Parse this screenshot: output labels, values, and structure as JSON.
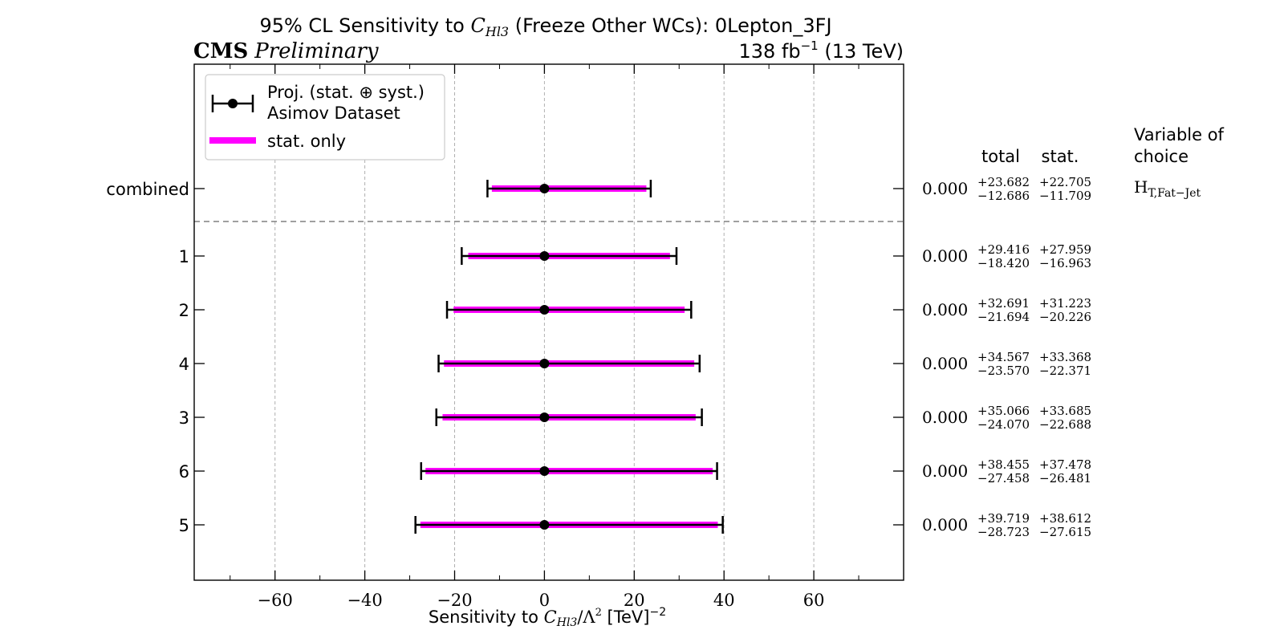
{
  "header": {
    "title_prefix": "95% CL Sensitivity to ",
    "title_wc": "C",
    "title_wc_sub": "Hl3",
    "title_suffix": " (Freeze Other WCs): 0Lepton_3FJ",
    "cms": "CMS",
    "preliminary": "Preliminary",
    "lumi_prefix": "138 fb",
    "lumi_exp": "−1",
    "lumi_suffix": " (13 TeV)"
  },
  "legend": {
    "proj_line1": "Proj. (stat. ⊕ syst.)",
    "proj_line2": "Asimov Dataset",
    "stat_only": "stat. only"
  },
  "columns": {
    "total": "total",
    "stat": "stat.",
    "variable_line1": "Variable of",
    "variable_line2": "choice",
    "variable_value": "H",
    "variable_value_sub": "T,Fat−Jet"
  },
  "colors": {
    "stat_band": "#ff00ff",
    "marker": "#000000",
    "grid": "#b0b0b0",
    "separator": "#808080"
  },
  "chart_data": {
    "type": "forest",
    "title": "95% CL Sensitivity to C_Hl3 (Freeze Other WCs): 0Lepton_3FJ",
    "xlabel": "Sensitivity to C_Hl3/Λ^2 [TeV]^-2",
    "xlim": [
      -78,
      80
    ],
    "xticks": [
      -60,
      -40,
      -20,
      0,
      20,
      40,
      60
    ],
    "xtick_labels": [
      "−60",
      "−40",
      "−20",
      "0",
      "20",
      "40",
      "60"
    ],
    "grid": true,
    "legend_position": "top-left",
    "rows": [
      {
        "label": "combined",
        "central": 0.0,
        "central_text": "0.000",
        "total_up": 23.682,
        "total_down": 12.686,
        "total_up_text": "+23.682",
        "total_down_text": "−12.686",
        "stat_up": 22.705,
        "stat_down": 11.709,
        "stat_up_text": "+22.705",
        "stat_down_text": "−11.709"
      },
      {
        "label": "1",
        "central": 0.0,
        "central_text": "0.000",
        "total_up": 29.416,
        "total_down": 18.42,
        "total_up_text": "+29.416",
        "total_down_text": "−18.420",
        "stat_up": 27.959,
        "stat_down": 16.963,
        "stat_up_text": "+27.959",
        "stat_down_text": "−16.963"
      },
      {
        "label": "2",
        "central": 0.0,
        "central_text": "0.000",
        "total_up": 32.691,
        "total_down": 21.694,
        "total_up_text": "+32.691",
        "total_down_text": "−21.694",
        "stat_up": 31.223,
        "stat_down": 20.226,
        "stat_up_text": "+31.223",
        "stat_down_text": "−20.226"
      },
      {
        "label": "4",
        "central": 0.0,
        "central_text": "0.000",
        "total_up": 34.567,
        "total_down": 23.57,
        "total_up_text": "+34.567",
        "total_down_text": "−23.570",
        "stat_up": 33.368,
        "stat_down": 22.371,
        "stat_up_text": "+33.368",
        "stat_down_text": "−22.371"
      },
      {
        "label": "3",
        "central": 0.0,
        "central_text": "0.000",
        "total_up": 35.066,
        "total_down": 24.07,
        "total_up_text": "+35.066",
        "total_down_text": "−24.070",
        "stat_up": 33.685,
        "stat_down": 22.688,
        "stat_up_text": "+33.685",
        "stat_down_text": "−22.688"
      },
      {
        "label": "6",
        "central": 0.0,
        "central_text": "0.000",
        "total_up": 38.455,
        "total_down": 27.458,
        "total_up_text": "+38.455",
        "total_down_text": "−27.458",
        "stat_up": 37.478,
        "stat_down": 26.481,
        "stat_up_text": "+37.478",
        "stat_down_text": "−26.481"
      },
      {
        "label": "5",
        "central": 0.0,
        "central_text": "0.000",
        "total_up": 39.719,
        "total_down": 28.723,
        "total_up_text": "+39.719",
        "total_down_text": "−28.723",
        "stat_up": 38.612,
        "stat_down": 27.615,
        "stat_up_text": "+38.612",
        "stat_down_text": "−27.615"
      }
    ]
  }
}
